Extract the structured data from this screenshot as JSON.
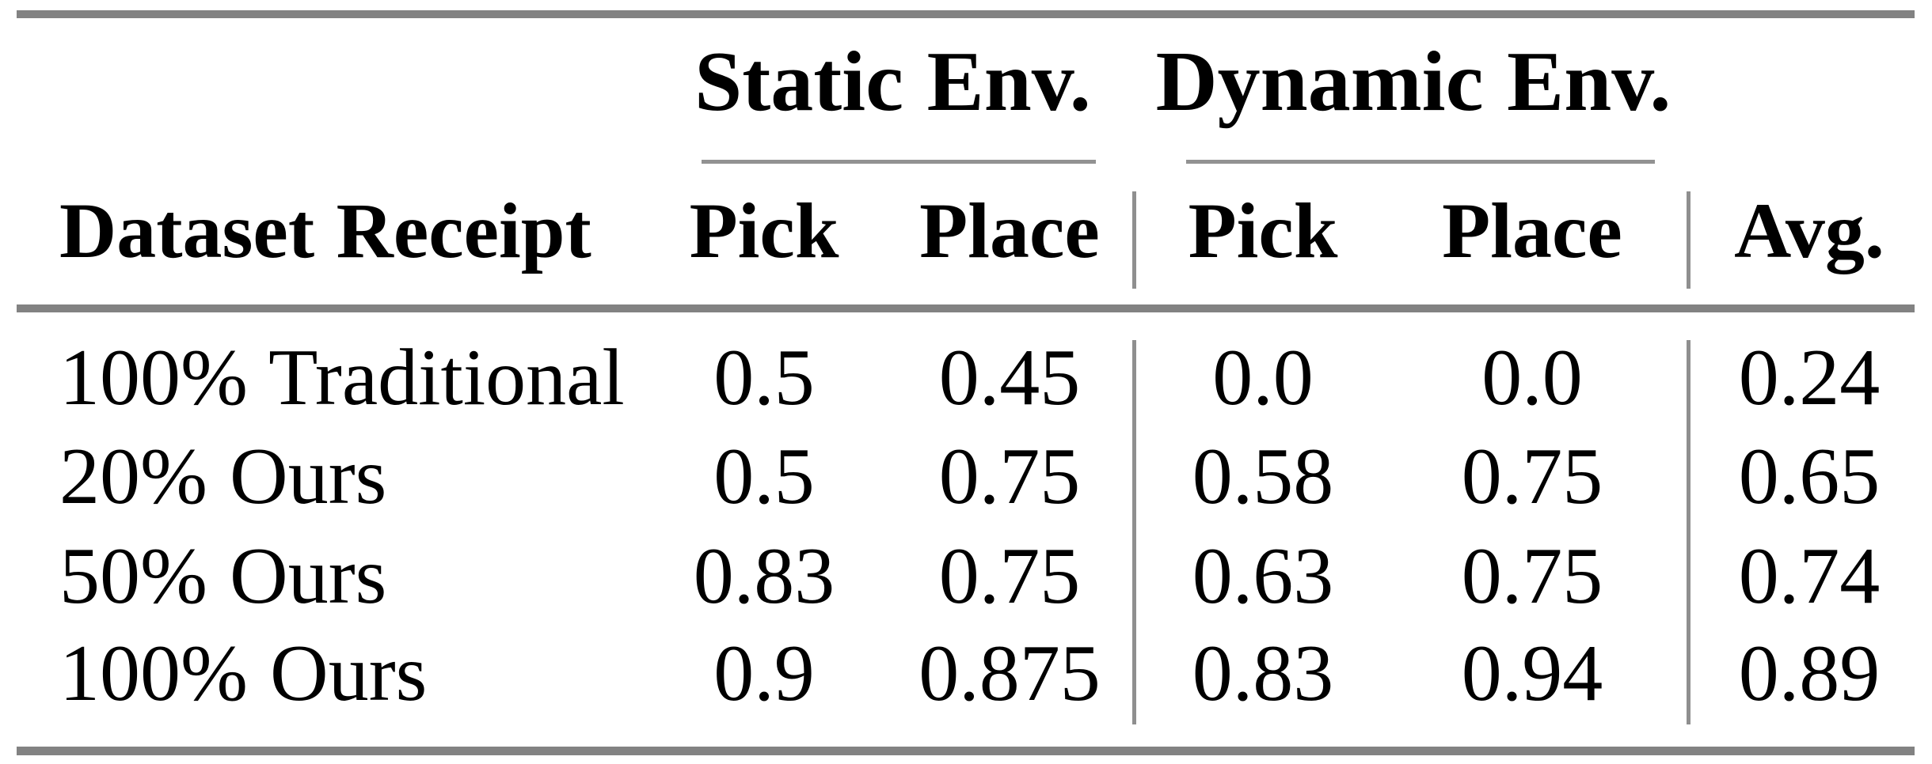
{
  "table": {
    "group_headers": [
      {
        "label": "Static Env."
      },
      {
        "label": "Dynamic Env."
      }
    ],
    "columns": [
      {
        "label": "Dataset Receipt"
      },
      {
        "label": "Pick"
      },
      {
        "label": "Place"
      },
      {
        "label": "Pick"
      },
      {
        "label": "Place"
      },
      {
        "label": "Avg."
      }
    ],
    "rows": [
      {
        "cells": [
          "100% Traditional",
          "0.5",
          "0.45",
          "0.0",
          "0.0",
          "0.24"
        ]
      },
      {
        "cells": [
          "20% Ours",
          "0.5",
          "0.75",
          "0.58",
          "0.75",
          "0.65"
        ]
      },
      {
        "cells": [
          "50% Ours",
          "0.83",
          "0.75",
          "0.63",
          "0.75",
          "0.74"
        ]
      },
      {
        "cells": [
          "100% Ours",
          "0.9",
          "0.875",
          "0.83",
          "0.94",
          "0.89"
        ]
      }
    ],
    "colors": {
      "thick_rule": "#828282",
      "thin_rule": "#929292",
      "text": "#000000",
      "background": "#ffffff"
    }
  }
}
